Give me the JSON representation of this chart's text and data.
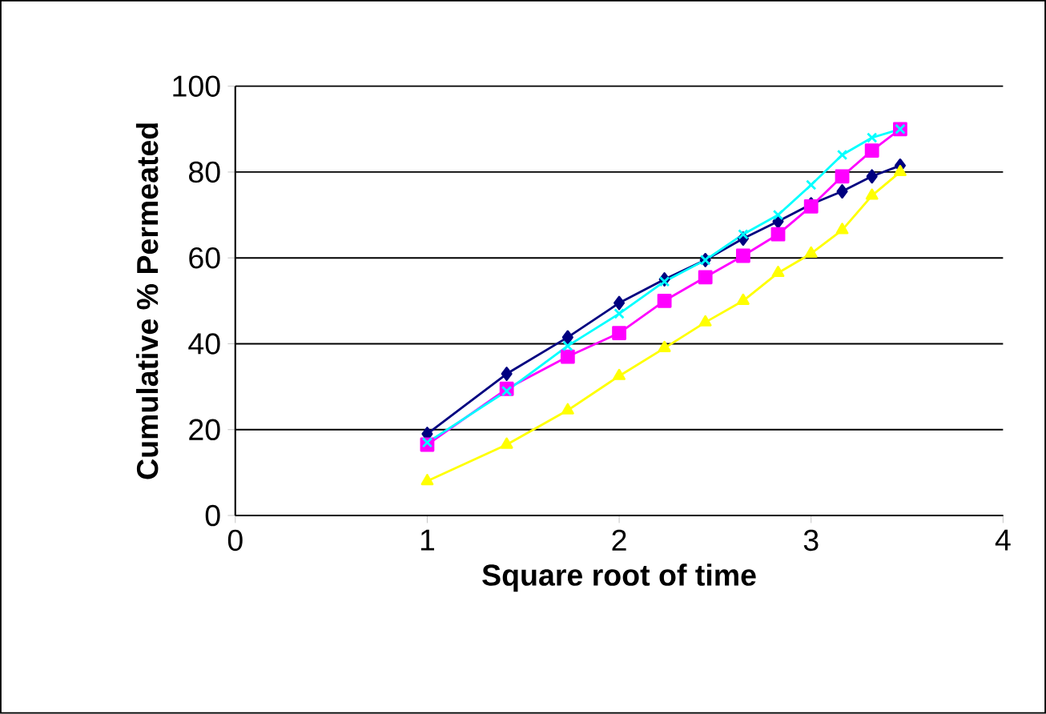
{
  "chart_data": {
    "type": "line",
    "xlabel": "Square root of time",
    "ylabel": "Cumulative % Permeated",
    "x": [
      1,
      1.414,
      1.732,
      2,
      2.236,
      2.449,
      2.646,
      2.828,
      3,
      3.162,
      3.317,
      3.464
    ],
    "series": [
      {
        "color": "#000080",
        "marker": "diamond",
        "values": [
          19,
          33,
          41.5,
          49.5,
          55,
          59.5,
          64.5,
          68.5,
          72.5,
          75.5,
          79,
          81.5
        ]
      },
      {
        "color": "#ff00ff",
        "marker": "square",
        "values": [
          16.5,
          29.5,
          37,
          42.5,
          50,
          55.5,
          60.5,
          65.5,
          72,
          79,
          85,
          90
        ]
      },
      {
        "color": "#ffff00",
        "marker": "triangle",
        "values": [
          8,
          16.5,
          24.5,
          32.5,
          39,
          45,
          50,
          56.5,
          61,
          66.5,
          74.5,
          80
        ]
      },
      {
        "color": "#00ffff",
        "marker": "cross",
        "values": [
          17,
          29,
          39.5,
          47,
          54.5,
          59.5,
          65.5,
          70,
          77,
          84,
          88,
          90
        ]
      }
    ],
    "xlim": [
      0,
      4
    ],
    "xticks": [
      0,
      1,
      2,
      3,
      4
    ],
    "ylim": [
      0,
      100
    ],
    "yticks": [
      0,
      20,
      40,
      60,
      80,
      100
    ],
    "grid": "y",
    "line_style": "solid"
  }
}
